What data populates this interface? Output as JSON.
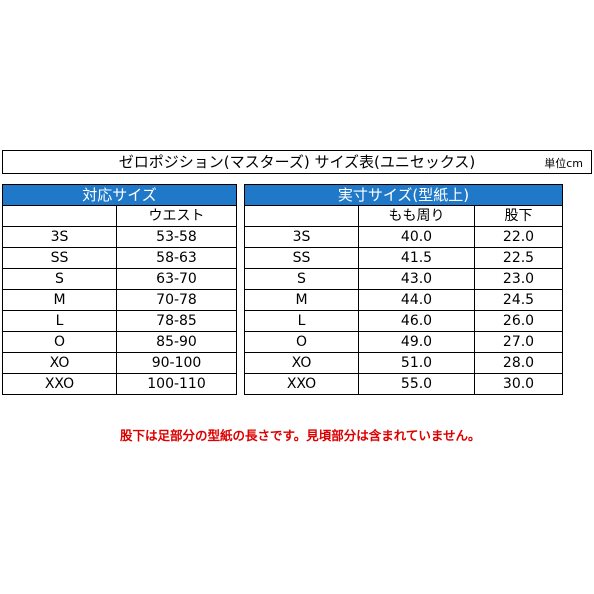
{
  "title": "ゼロポジション(マスターズ) サイズ表(ユニセックス)",
  "unit": "単位cm",
  "left_table": {
    "header": "対応サイズ",
    "col1_header": "",
    "col2_header": "ウエスト",
    "rows": [
      {
        "size": "3S",
        "waist": "53-58"
      },
      {
        "size": "SS",
        "waist": "58-63"
      },
      {
        "size": "S",
        "waist": "63-70"
      },
      {
        "size": "M",
        "waist": "70-78"
      },
      {
        "size": "L",
        "waist": "78-85"
      },
      {
        "size": "O",
        "waist": "85-90"
      },
      {
        "size": "XO",
        "waist": "90-100"
      },
      {
        "size": "XXO",
        "waist": "100-110"
      }
    ]
  },
  "right_table": {
    "header": "実寸サイズ(型紙上)",
    "col1_header": "",
    "col2_header": "もも周り",
    "col3_header": "股下",
    "rows": [
      {
        "size": "3S",
        "thigh": "40.0",
        "inseam": "22.0"
      },
      {
        "size": "SS",
        "thigh": "41.5",
        "inseam": "22.5"
      },
      {
        "size": "S",
        "thigh": "43.0",
        "inseam": "23.0"
      },
      {
        "size": "M",
        "thigh": "44.0",
        "inseam": "24.5"
      },
      {
        "size": "L",
        "thigh": "46.0",
        "inseam": "26.0"
      },
      {
        "size": "O",
        "thigh": "49.0",
        "inseam": "27.0"
      },
      {
        "size": "XO",
        "thigh": "51.0",
        "inseam": "28.0"
      },
      {
        "size": "XXO",
        "thigh": "55.0",
        "inseam": "30.0"
      }
    ]
  },
  "note": "股下は足部分の型紙の長さです。見頃部分は含まれていません。",
  "colors": {
    "header_bg": "#1f78c8",
    "header_text": "#ffffff",
    "note": "#dc0000"
  }
}
